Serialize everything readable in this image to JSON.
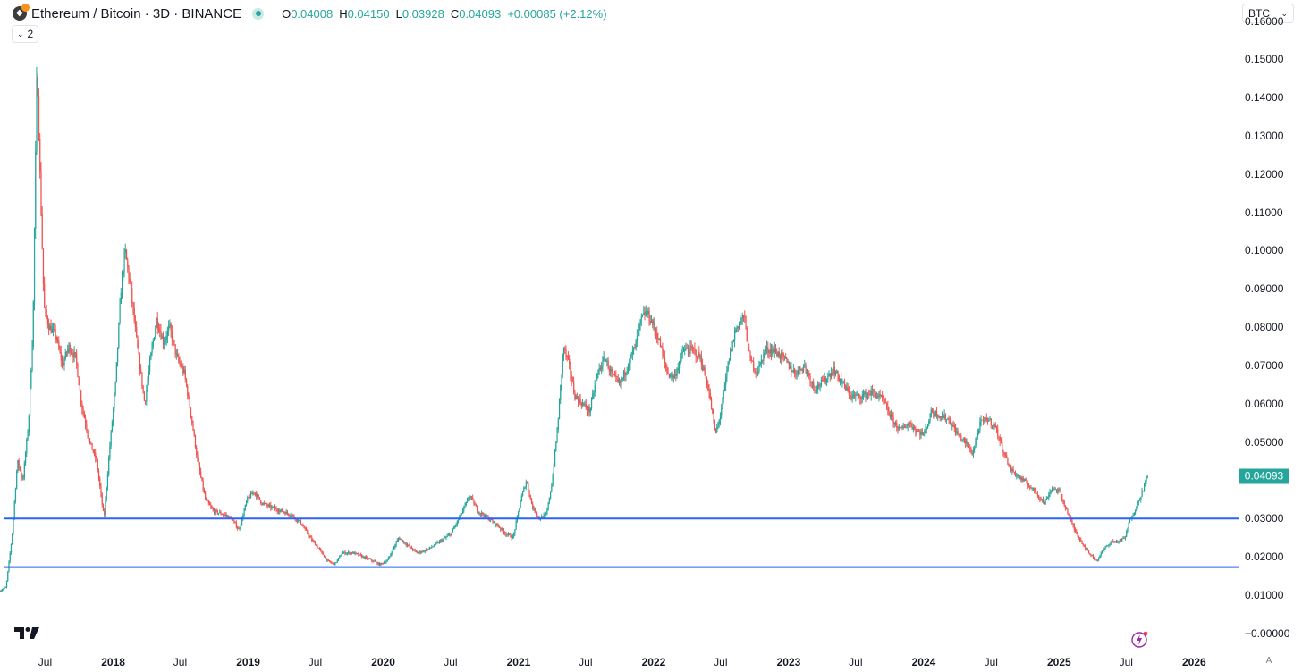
{
  "header": {
    "title": "Ethereum / Bitcoin · 3D · BINANCE",
    "open_label": "O",
    "open": "0.04008",
    "high_label": "H",
    "high": "0.04150",
    "low_label": "L",
    "low": "0.03928",
    "close_label": "C",
    "close": "0.04093",
    "change": "+0.00085 (+2.12%)",
    "collapse_count": "2"
  },
  "currency_select": "BTC",
  "auto_scale_label": "A",
  "colors": {
    "up": "#26a69a",
    "down": "#ef5350",
    "level_line": "#2962ff",
    "background": "#ffffff"
  },
  "icons": [
    "ethereum-bitcoin-icon",
    "live-status-icon",
    "chevron-down-icon",
    "tradingview-logo-icon",
    "lightning-icon"
  ],
  "chart_data": {
    "type": "candlestick",
    "title": "Ethereum / Bitcoin · 3D · BINANCE",
    "last_price": 0.04093,
    "y_tick_labels": [
      "0.16000",
      "0.15000",
      "0.14000",
      "0.13000",
      "0.12000",
      "0.11000",
      "0.10000",
      "0.09000",
      "0.08000",
      "0.07000",
      "0.06000",
      "0.05000",
      "0.04000",
      "0.03000",
      "0.02000",
      "0.01000",
      "−0.00000"
    ],
    "y_ticks": [
      0.16,
      0.15,
      0.14,
      0.13,
      0.12,
      0.11,
      0.1,
      0.09,
      0.08,
      0.07,
      0.06,
      0.05,
      0.04,
      0.03,
      0.02,
      0.01,
      0
    ],
    "ylim": [
      -0.0045,
      0.1655
    ],
    "xlim": [
      "2017-03-01",
      "2026-05-01"
    ],
    "x_tick_labels": [
      {
        "label": "Jul",
        "date": "2017-07-01",
        "year": false
      },
      {
        "label": "2018",
        "date": "2018-01-01",
        "year": true
      },
      {
        "label": "Jul",
        "date": "2018-07-01",
        "year": false
      },
      {
        "label": "2019",
        "date": "2019-01-01",
        "year": true
      },
      {
        "label": "Jul",
        "date": "2019-07-01",
        "year": false
      },
      {
        "label": "2020",
        "date": "2020-01-01",
        "year": true
      },
      {
        "label": "Jul",
        "date": "2020-07-01",
        "year": false
      },
      {
        "label": "2021",
        "date": "2021-01-01",
        "year": true
      },
      {
        "label": "Jul",
        "date": "2021-07-01",
        "year": false
      },
      {
        "label": "2022",
        "date": "2022-01-01",
        "year": true
      },
      {
        "label": "Jul",
        "date": "2022-07-01",
        "year": false
      },
      {
        "label": "2023",
        "date": "2023-01-01",
        "year": true
      },
      {
        "label": "Jul",
        "date": "2023-07-01",
        "year": false
      },
      {
        "label": "2024",
        "date": "2024-01-01",
        "year": true
      },
      {
        "label": "Jul",
        "date": "2024-07-01",
        "year": false
      },
      {
        "label": "2025",
        "date": "2025-01-01",
        "year": true
      },
      {
        "label": "Jul",
        "date": "2025-07-01",
        "year": false
      },
      {
        "label": "2026",
        "date": "2026-01-01",
        "year": true
      }
    ],
    "horizontal_levels": [
      {
        "value": 0.03
      },
      {
        "value": 0.0173
      }
    ],
    "price_path": [
      [
        "2017-03-01",
        0.011
      ],
      [
        "2017-03-20",
        0.012
      ],
      [
        "2017-04-05",
        0.025
      ],
      [
        "2017-04-20",
        0.045
      ],
      [
        "2017-05-05",
        0.04
      ],
      [
        "2017-05-20",
        0.055
      ],
      [
        "2017-06-01",
        0.08
      ],
      [
        "2017-06-12",
        0.15
      ],
      [
        "2017-06-20",
        0.12
      ],
      [
        "2017-07-01",
        0.085
      ],
      [
        "2017-07-15",
        0.08
      ],
      [
        "2017-08-01",
        0.078
      ],
      [
        "2017-08-20",
        0.07
      ],
      [
        "2017-09-05",
        0.075
      ],
      [
        "2017-09-25",
        0.072
      ],
      [
        "2017-10-10",
        0.06
      ],
      [
        "2017-11-01",
        0.05
      ],
      [
        "2017-11-20",
        0.045
      ],
      [
        "2017-12-10",
        0.03
      ],
      [
        "2017-12-25",
        0.048
      ],
      [
        "2018-01-10",
        0.065
      ],
      [
        "2018-01-25",
        0.09
      ],
      [
        "2018-02-05",
        0.1
      ],
      [
        "2018-02-20",
        0.09
      ],
      [
        "2018-03-10",
        0.075
      ],
      [
        "2018-03-30",
        0.06
      ],
      [
        "2018-04-15",
        0.072
      ],
      [
        "2018-05-01",
        0.082
      ],
      [
        "2018-05-20",
        0.076
      ],
      [
        "2018-06-05",
        0.08
      ],
      [
        "2018-06-25",
        0.072
      ],
      [
        "2018-07-15",
        0.068
      ],
      [
        "2018-08-01",
        0.058
      ],
      [
        "2018-08-20",
        0.045
      ],
      [
        "2018-09-10",
        0.035
      ],
      [
        "2018-10-01",
        0.032
      ],
      [
        "2018-11-01",
        0.031
      ],
      [
        "2018-11-20",
        0.03
      ],
      [
        "2018-12-10",
        0.027
      ],
      [
        "2019-01-01",
        0.035
      ],
      [
        "2019-01-20",
        0.037
      ],
      [
        "2019-02-10",
        0.034
      ],
      [
        "2019-03-05",
        0.033
      ],
      [
        "2019-04-01",
        0.032
      ],
      [
        "2019-05-01",
        0.031
      ],
      [
        "2019-05-25",
        0.029
      ],
      [
        "2019-06-20",
        0.025
      ],
      [
        "2019-07-15",
        0.022
      ],
      [
        "2019-08-05",
        0.019
      ],
      [
        "2019-08-25",
        0.018
      ],
      [
        "2019-09-15",
        0.021
      ],
      [
        "2019-10-15",
        0.021
      ],
      [
        "2019-11-10",
        0.02
      ],
      [
        "2019-12-05",
        0.019
      ],
      [
        "2019-12-25",
        0.018
      ],
      [
        "2020-01-15",
        0.019
      ],
      [
        "2020-02-15",
        0.025
      ],
      [
        "2020-03-10",
        0.023
      ],
      [
        "2020-04-05",
        0.021
      ],
      [
        "2020-05-05",
        0.022
      ],
      [
        "2020-06-05",
        0.024
      ],
      [
        "2020-07-05",
        0.026
      ],
      [
        "2020-08-01",
        0.031
      ],
      [
        "2020-08-25",
        0.036
      ],
      [
        "2020-09-15",
        0.032
      ],
      [
        "2020-10-15",
        0.03
      ],
      [
        "2020-11-10",
        0.028
      ],
      [
        "2020-12-01",
        0.026
      ],
      [
        "2020-12-20",
        0.025
      ],
      [
        "2021-01-10",
        0.035
      ],
      [
        "2021-01-25",
        0.04
      ],
      [
        "2021-02-10",
        0.033
      ],
      [
        "2021-03-01",
        0.03
      ],
      [
        "2021-03-20",
        0.031
      ],
      [
        "2021-04-05",
        0.04
      ],
      [
        "2021-04-20",
        0.055
      ],
      [
        "2021-05-05",
        0.075
      ],
      [
        "2021-05-20",
        0.07
      ],
      [
        "2021-06-05",
        0.062
      ],
      [
        "2021-06-25",
        0.06
      ],
      [
        "2021-07-15",
        0.058
      ],
      [
        "2021-08-05",
        0.068
      ],
      [
        "2021-08-25",
        0.072
      ],
      [
        "2021-09-15",
        0.067
      ],
      [
        "2021-10-05",
        0.065
      ],
      [
        "2021-10-25",
        0.07
      ],
      [
        "2021-11-15",
        0.075
      ],
      [
        "2021-12-01",
        0.082
      ],
      [
        "2021-12-15",
        0.084
      ],
      [
        "2022-01-01",
        0.081
      ],
      [
        "2022-01-20",
        0.076
      ],
      [
        "2022-02-10",
        0.068
      ],
      [
        "2022-03-01",
        0.067
      ],
      [
        "2022-03-25",
        0.074
      ],
      [
        "2022-04-20",
        0.074
      ],
      [
        "2022-05-10",
        0.072
      ],
      [
        "2022-06-01",
        0.064
      ],
      [
        "2022-06-20",
        0.052
      ],
      [
        "2022-07-05",
        0.058
      ],
      [
        "2022-07-25",
        0.071
      ],
      [
        "2022-08-15",
        0.08
      ],
      [
        "2022-09-05",
        0.083
      ],
      [
        "2022-09-20",
        0.072
      ],
      [
        "2022-10-10",
        0.068
      ],
      [
        "2022-11-01",
        0.074
      ],
      [
        "2022-11-25",
        0.074
      ],
      [
        "2022-12-20",
        0.072
      ],
      [
        "2023-01-20",
        0.068
      ],
      [
        "2023-02-15",
        0.07
      ],
      [
        "2023-03-15",
        0.064
      ],
      [
        "2023-04-10",
        0.066
      ],
      [
        "2023-05-05",
        0.069
      ],
      [
        "2023-05-25",
        0.066
      ],
      [
        "2023-06-20",
        0.062
      ],
      [
        "2023-07-20",
        0.062
      ],
      [
        "2023-08-20",
        0.063
      ],
      [
        "2023-09-15",
        0.061
      ],
      [
        "2023-10-10",
        0.056
      ],
      [
        "2023-11-01",
        0.053
      ],
      [
        "2023-11-25",
        0.055
      ],
      [
        "2023-12-15",
        0.053
      ],
      [
        "2024-01-05",
        0.052
      ],
      [
        "2024-01-25",
        0.058
      ],
      [
        "2024-02-15",
        0.057
      ],
      [
        "2024-03-10",
        0.056
      ],
      [
        "2024-04-05",
        0.052
      ],
      [
        "2024-04-25",
        0.05
      ],
      [
        "2024-05-15",
        0.047
      ],
      [
        "2024-06-05",
        0.055
      ],
      [
        "2024-06-25",
        0.056
      ],
      [
        "2024-07-15",
        0.054
      ],
      [
        "2024-08-05",
        0.048
      ],
      [
        "2024-08-25",
        0.043
      ],
      [
        "2024-09-15",
        0.041
      ],
      [
        "2024-10-10",
        0.039
      ],
      [
        "2024-11-01",
        0.037
      ],
      [
        "2024-11-25",
        0.034
      ],
      [
        "2024-12-15",
        0.038
      ],
      [
        "2025-01-05",
        0.037
      ],
      [
        "2025-01-25",
        0.032
      ],
      [
        "2025-02-15",
        0.027
      ],
      [
        "2025-03-05",
        0.024
      ],
      [
        "2025-03-25",
        0.021
      ],
      [
        "2025-04-15",
        0.019
      ],
      [
        "2025-05-05",
        0.022
      ],
      [
        "2025-05-25",
        0.024
      ],
      [
        "2025-06-15",
        0.024
      ],
      [
        "2025-07-01",
        0.025
      ],
      [
        "2025-07-15",
        0.03
      ],
      [
        "2025-08-01",
        0.033
      ],
      [
        "2025-08-20",
        0.038
      ],
      [
        "2025-08-30",
        0.04093
      ]
    ]
  }
}
